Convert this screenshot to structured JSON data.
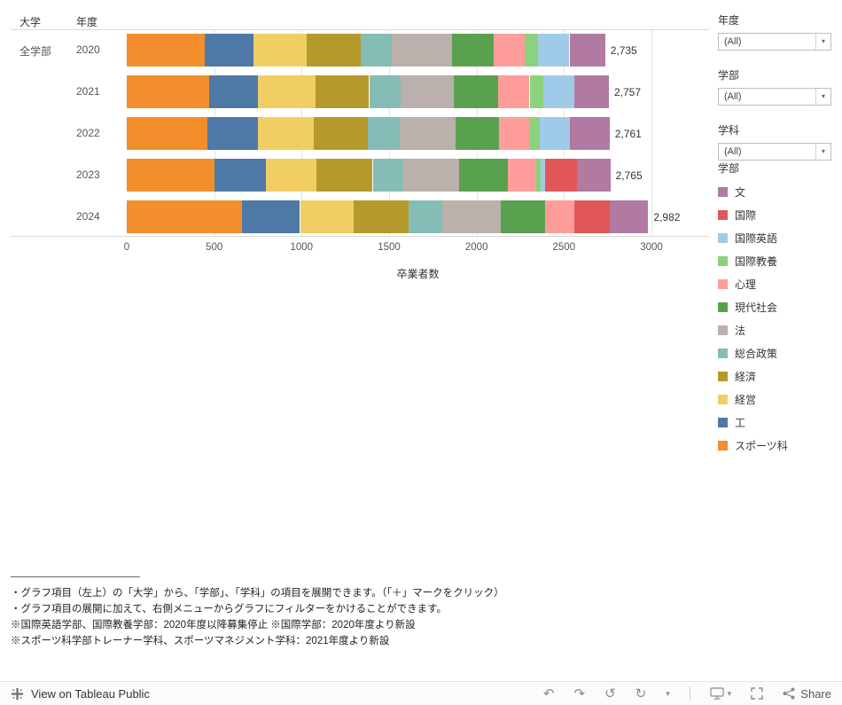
{
  "header": {
    "university_label": "大学",
    "year_label": "年度",
    "group_label": "全学部"
  },
  "filters": [
    {
      "label": "年度",
      "value": "(All)"
    },
    {
      "label": "学部",
      "value": "(All)"
    },
    {
      "label": "学科",
      "value": "(All)"
    }
  ],
  "legend": {
    "title": "学部",
    "items": [
      {
        "label": "文",
        "color": "#B07AA1"
      },
      {
        "label": "国際",
        "color": "#E15759"
      },
      {
        "label": "国際英語",
        "color": "#A0CBE8"
      },
      {
        "label": "国際教養",
        "color": "#8CD17D"
      },
      {
        "label": "心理",
        "color": "#FF9D9A"
      },
      {
        "label": "現代社会",
        "color": "#59A14F"
      },
      {
        "label": "法",
        "color": "#BAB0AC"
      },
      {
        "label": "総合政策",
        "color": "#86BCB6"
      },
      {
        "label": "経済",
        "color": "#B6992D"
      },
      {
        "label": "経営",
        "color": "#F1CE63"
      },
      {
        "label": "工",
        "color": "#4E79A7"
      },
      {
        "label": "スポーツ科",
        "color": "#F28E2B"
      }
    ]
  },
  "chart_data": {
    "type": "bar",
    "stacked": true,
    "orientation": "horizontal",
    "title": "",
    "xlabel": "卒業者数",
    "categories": [
      "2020",
      "2021",
      "2022",
      "2023",
      "2024"
    ],
    "totals": [
      2735,
      2757,
      2761,
      2765,
      2982
    ],
    "totals_display": [
      "2,735",
      "2,757",
      "2,761",
      "2,765",
      "2,982"
    ],
    "xlim": [
      0,
      3000
    ],
    "x_ticks": [
      0,
      500,
      1000,
      1500,
      2000,
      2500,
      3000
    ],
    "series": [
      {
        "name": "スポーツ科",
        "color": "#F28E2B",
        "values": [
          444,
          469,
          460,
          500,
          660
        ]
      },
      {
        "name": "工",
        "color": "#4E79A7",
        "values": [
          280,
          280,
          292,
          295,
          331
        ]
      },
      {
        "name": "経営",
        "color": "#F1CE63",
        "values": [
          306,
          331,
          318,
          290,
          306
        ]
      },
      {
        "name": "経済",
        "color": "#B6992D",
        "values": [
          306,
          306,
          308,
          321,
          316
        ]
      },
      {
        "name": "総合政策",
        "color": "#86BCB6",
        "values": [
          178,
          178,
          184,
          173,
          193
        ]
      },
      {
        "name": "法",
        "color": "#BAB0AC",
        "values": [
          346,
          306,
          318,
          321,
          331
        ]
      },
      {
        "name": "現代社会",
        "color": "#59A14F",
        "values": [
          239,
          255,
          246,
          280,
          255
        ]
      },
      {
        "name": "心理",
        "color": "#FF9D9A",
        "values": [
          178,
          178,
          174,
          163,
          168
        ]
      },
      {
        "name": "国際教養",
        "color": "#8CD17D",
        "values": [
          76,
          76,
          62,
          25,
          0
        ]
      },
      {
        "name": "国際英語",
        "color": "#A0CBE8",
        "values": [
          178,
          178,
          174,
          25,
          0
        ]
      },
      {
        "name": "国際",
        "color": "#E15759",
        "values": [
          0,
          0,
          0,
          180,
          204
        ]
      },
      {
        "name": "文",
        "color": "#B07AA1",
        "values": [
          204,
          200,
          225,
          192,
          218
        ]
      }
    ]
  },
  "notes": {
    "lines": [
      "・グラフ項目（左上）の「大学」から、「学部」、「学科」の項目を展開できます。（「＋」マークをクリック）",
      "・グラフ項目の展開に加えて、右側メニューからグラフにフィルターをかけることができます。",
      "※国際英語学部、国際教養学部：2020年度以降募集停止 ※国際学部：2020年度より新設",
      "※スポーツ科学部トレーナー学科、スポーツマネジメント学科：2021年度より新設"
    ]
  },
  "footer": {
    "view_on": "View on Tableau Public",
    "share": "Share"
  },
  "icons": {
    "undo": "↶",
    "redo": "↷",
    "revert": "↺",
    "refresh": "↻",
    "caret": "▾"
  }
}
